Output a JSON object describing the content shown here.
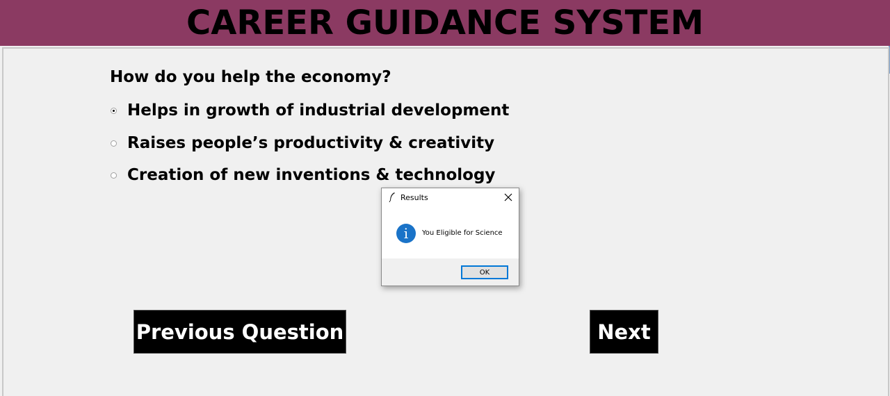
{
  "header": {
    "title": "CAREER GUIDANCE SYSTEM",
    "background_color": "#8b3a62"
  },
  "quiz": {
    "question": "How do you help the economy?",
    "options": [
      {
        "label": "Helps in growth of industrial development",
        "selected": true
      },
      {
        "label": "Raises people’s productivity & creativity",
        "selected": false
      },
      {
        "label": "Creation of new inventions & technology",
        "selected": false
      }
    ],
    "previous_button_label": "Previous Question",
    "next_button_label": "Next"
  },
  "dialog": {
    "title": "Results",
    "icon": "info-icon",
    "icon_glyph": "i",
    "message": "You Eligible for Science",
    "ok_label": "OK",
    "accent_color": "#0078d7"
  }
}
